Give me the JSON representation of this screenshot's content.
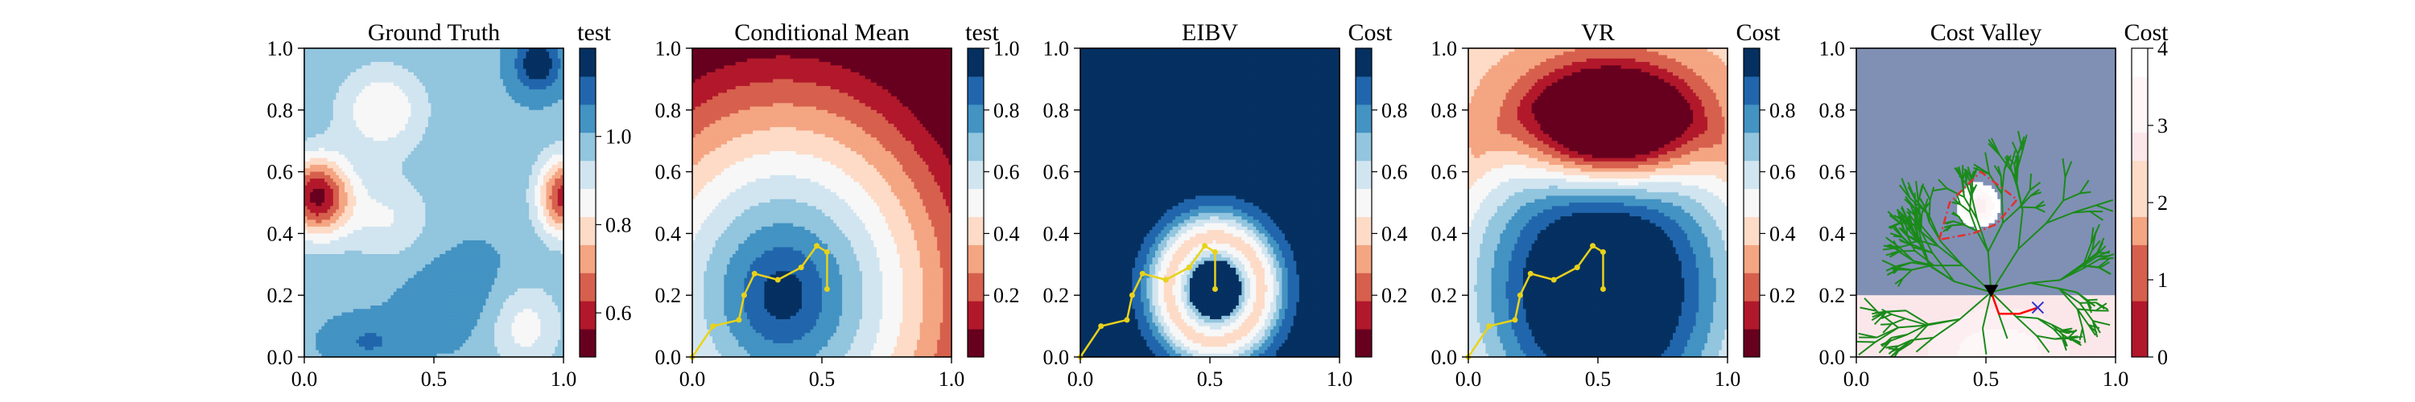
{
  "chart_data": [
    {
      "type": "heatmap",
      "title": "Ground Truth",
      "colorbar_label": "test",
      "xlim": [
        0,
        1
      ],
      "ylim": [
        0,
        1
      ],
      "xticks": [
        "0.0",
        "0.5",
        "1.0"
      ],
      "yticks": [
        "0.0",
        "0.2",
        "0.4",
        "0.6",
        "0.8",
        "1.0"
      ],
      "colorbar": {
        "range": [
          0.5,
          1.2
        ],
        "ticks": [
          0.6,
          0.8,
          1.0
        ],
        "tick_labels": [
          "0.6",
          "0.8",
          "1.0"
        ],
        "colormap": "RdBu"
      },
      "field": {
        "base": 1.0,
        "bumps": [
          {
            "x": 0.05,
            "y": 0.52,
            "sx": 0.09,
            "sy": 0.09,
            "a": -0.45
          },
          {
            "x": 1.0,
            "y": 0.52,
            "sx": 0.07,
            "sy": 0.09,
            "a": -0.4
          },
          {
            "x": 0.3,
            "y": 0.8,
            "sx": 0.12,
            "sy": 0.1,
            "a": -0.18
          },
          {
            "x": 0.85,
            "y": 0.1,
            "sx": 0.1,
            "sy": 0.1,
            "a": -0.15
          },
          {
            "x": 0.32,
            "y": 0.45,
            "sx": 0.12,
            "sy": 0.1,
            "a": -0.12
          },
          {
            "x": 0.9,
            "y": 0.95,
            "sx": 0.06,
            "sy": 0.06,
            "a": 0.2
          },
          {
            "x": 0.6,
            "y": 0.2,
            "sx": 0.15,
            "sy": 0.1,
            "a": 0.06
          },
          {
            "x": 0.25,
            "y": 0.05,
            "sx": 0.1,
            "sy": 0.05,
            "a": 0.08
          }
        ]
      }
    },
    {
      "type": "heatmap",
      "title": "Conditional Mean",
      "colorbar_label": "test",
      "xlim": [
        0,
        1
      ],
      "ylim": [
        0,
        1
      ],
      "xticks": [
        "0.0",
        "0.5",
        "1.0"
      ],
      "yticks": [
        "0.0",
        "0.2",
        "0.4",
        "0.6",
        "0.8",
        "1.0"
      ],
      "colorbar": {
        "range": [
          0.0,
          1.0
        ],
        "ticks": [
          0.2,
          0.4,
          0.6,
          0.8,
          1.0
        ],
        "tick_labels": [
          "0.2",
          "0.4",
          "0.6",
          "0.8",
          "1.0"
        ],
        "colormap": "RdBu"
      },
      "field": {
        "center": [
          0.35,
          0.2
        ],
        "radius_scale": 0.6,
        "shape": "radial"
      },
      "path": {
        "color": "#e8d21a",
        "points": [
          [
            0.0,
            0.0
          ],
          [
            0.08,
            0.1
          ],
          [
            0.18,
            0.12
          ],
          [
            0.2,
            0.2
          ],
          [
            0.24,
            0.27
          ],
          [
            0.33,
            0.25
          ],
          [
            0.42,
            0.29
          ],
          [
            0.48,
            0.36
          ],
          [
            0.52,
            0.34
          ],
          [
            0.52,
            0.22
          ]
        ]
      }
    },
    {
      "type": "heatmap",
      "title": "EIBV",
      "colorbar_label": "Cost",
      "xlim": [
        0,
        1
      ],
      "ylim": [
        0,
        1
      ],
      "xticks": [
        "0.0",
        "0.5",
        "1.0"
      ],
      "yticks": [
        "0.0",
        "0.2",
        "0.4",
        "0.6",
        "0.8",
        "1.0"
      ],
      "colorbar": {
        "range": [
          0.0,
          1.0
        ],
        "ticks": [
          0.2,
          0.4,
          0.6,
          0.8
        ],
        "tick_labels": [
          "0.2",
          "0.4",
          "0.6",
          "0.8"
        ],
        "colormap": "RdBu"
      },
      "field": {
        "center": [
          0.52,
          0.22
        ],
        "shape": "ring",
        "ring_radius": 0.18,
        "ring_width": 0.09
      },
      "path": {
        "color": "#e8d21a",
        "points": [
          [
            0.0,
            0.0
          ],
          [
            0.08,
            0.1
          ],
          [
            0.18,
            0.12
          ],
          [
            0.2,
            0.2
          ],
          [
            0.24,
            0.27
          ],
          [
            0.33,
            0.25
          ],
          [
            0.42,
            0.29
          ],
          [
            0.48,
            0.36
          ],
          [
            0.52,
            0.34
          ],
          [
            0.52,
            0.22
          ]
        ]
      }
    },
    {
      "type": "heatmap",
      "title": "VR",
      "colorbar_label": "Cost",
      "xlim": [
        0,
        1
      ],
      "ylim": [
        0,
        1
      ],
      "xticks": [
        "0.0",
        "0.5",
        "1.0"
      ],
      "yticks": [
        "0.0",
        "0.2",
        "0.4",
        "0.6",
        "0.8",
        "1.0"
      ],
      "colorbar": {
        "range": [
          0.0,
          1.0
        ],
        "ticks": [
          0.2,
          0.4,
          0.6,
          0.8
        ],
        "tick_labels": [
          "0.2",
          "0.4",
          "0.6",
          "0.8"
        ],
        "colormap": "RdBu"
      },
      "field": {
        "center": [
          0.52,
          0.22
        ],
        "shape": "vr"
      },
      "path": {
        "color": "#e8d21a",
        "points": [
          [
            0.0,
            0.0
          ],
          [
            0.08,
            0.1
          ],
          [
            0.18,
            0.12
          ],
          [
            0.2,
            0.2
          ],
          [
            0.24,
            0.27
          ],
          [
            0.33,
            0.25
          ],
          [
            0.42,
            0.29
          ],
          [
            0.48,
            0.36
          ],
          [
            0.52,
            0.34
          ],
          [
            0.52,
            0.22
          ]
        ]
      }
    },
    {
      "type": "heatmap",
      "title": "Cost Valley",
      "colorbar_label": "Cost",
      "xlim": [
        0,
        1
      ],
      "ylim": [
        0,
        1
      ],
      "xticks": [
        "0.0",
        "0.5",
        "1.0"
      ],
      "yticks": [
        "0.0",
        "0.2",
        "0.4",
        "0.6",
        "0.8",
        "1.0"
      ],
      "colorbar": {
        "range": [
          0,
          4
        ],
        "ticks": [
          0,
          1,
          2,
          3,
          4
        ],
        "tick_labels": [
          "0",
          "1",
          "2",
          "3",
          "4"
        ],
        "colormap": "Reds_white_top"
      },
      "field": {
        "shape": "cost"
      },
      "obstacle": {
        "color": "#e03030",
        "points": [
          [
            0.32,
            0.38
          ],
          [
            0.36,
            0.5
          ],
          [
            0.48,
            0.6
          ],
          [
            0.62,
            0.51
          ],
          [
            0.54,
            0.43
          ],
          [
            0.45,
            0.4
          ]
        ]
      },
      "tree": {
        "color": "#1a8a1a",
        "root": [
          0.52,
          0.21
        ]
      },
      "start_marker": {
        "x": 0.52,
        "y": 0.21,
        "color": "#000000"
      },
      "goal_marker": {
        "x": 0.7,
        "y": 0.16,
        "color": "#3333cc"
      },
      "route": {
        "color": "#ff0000",
        "points": [
          [
            0.52,
            0.21
          ],
          [
            0.55,
            0.14
          ],
          [
            0.63,
            0.14
          ],
          [
            0.7,
            0.16
          ]
        ]
      }
    }
  ]
}
